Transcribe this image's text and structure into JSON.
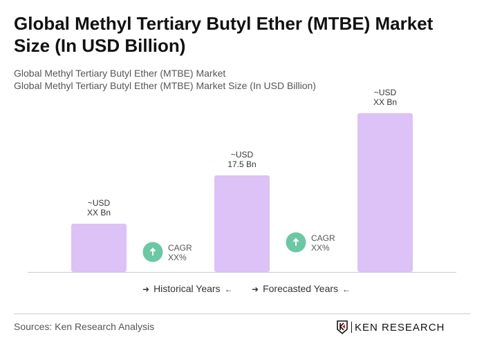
{
  "title": "Global Methyl Tertiary Butyl Ether (MTBE) Market Size (In USD Billion)",
  "subtitle1": "Global Methyl Tertiary Butyl Ether (MTBE) Market",
  "subtitle2": "Global Methyl Tertiary Butyl Ether (MTBE) Market Size (In USD Billion)",
  "chart_data": {
    "type": "bar",
    "categories": [
      "",
      "",
      ""
    ],
    "values": [
      null,
      17.5,
      null
    ],
    "data_labels": [
      [
        "~USD",
        "XX Bn"
      ],
      [
        "~USD",
        "17.5 Bn"
      ],
      [
        "~USD",
        "XX Bn"
      ]
    ],
    "bar_color": "#dcc2f7",
    "cagr": [
      {
        "label": "CAGR",
        "value": "XX%"
      },
      {
        "label": "CAGR",
        "value": "XX%"
      }
    ],
    "cagr_color": "#6cc7a3",
    "legend": [
      "Historical Years",
      "Forecasted Years"
    ]
  },
  "source": "Sources: Ken Research Analysis",
  "logo": "KEN RESEARCH"
}
